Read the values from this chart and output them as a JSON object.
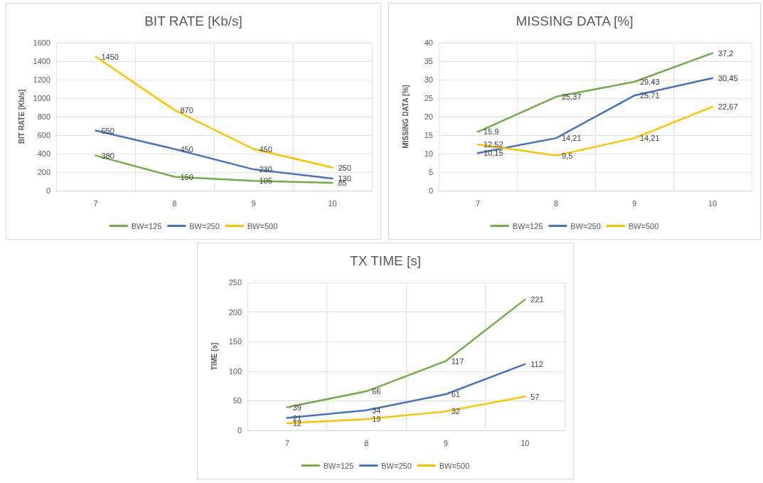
{
  "chart_data": [
    {
      "type": "line",
      "title": "BIT RATE [Kb/s]",
      "ylabel": "BIT RATE [Kb/s]",
      "categories": [
        "7",
        "8",
        "9",
        "10"
      ],
      "ylim": [
        0,
        1600
      ],
      "yticks": [
        0,
        200,
        400,
        600,
        800,
        1000,
        1200,
        1400,
        1600
      ],
      "grid": true,
      "legend": "bottom",
      "marker": "none",
      "series": [
        {
          "name": "BW=125",
          "color": "#70ad47",
          "values": [
            380,
            150,
            105,
            85
          ],
          "value_labels": [
            "380",
            "150",
            "105",
            "85"
          ]
        },
        {
          "name": "BW=250",
          "color": "#4472c4",
          "values": [
            650,
            450,
            230,
            130
          ],
          "value_labels": [
            "650",
            "450",
            "230",
            "130"
          ]
        },
        {
          "name": "BW=500",
          "color": "#ffc000",
          "values": [
            1450,
            870,
            450,
            250
          ],
          "value_labels": [
            "1450",
            "870",
            "450",
            "250"
          ]
        }
      ]
    },
    {
      "type": "line",
      "title": "MISSING DATA [%]",
      "ylabel": "MISSING DATA [%]",
      "categories": [
        "7",
        "8",
        "9",
        "10"
      ],
      "ylim": [
        0,
        40
      ],
      "yticks": [
        0,
        5,
        10,
        15,
        20,
        25,
        30,
        35,
        40
      ],
      "grid": true,
      "legend": "bottom",
      "marker": "none",
      "series": [
        {
          "name": "BW=125",
          "color": "#70ad47",
          "values": [
            15.9,
            25.37,
            29.43,
            37.2
          ],
          "value_labels": [
            "15,9",
            "25,37",
            "29,43",
            "37,2"
          ]
        },
        {
          "name": "BW=250",
          "color": "#4472c4",
          "values": [
            10.15,
            14.21,
            25.71,
            30.45
          ],
          "value_labels": [
            "10,15",
            "14,21",
            "25,71",
            "30,45"
          ]
        },
        {
          "name": "BW=500",
          "color": "#ffc000",
          "values": [
            12.52,
            9.5,
            14.21,
            22.67
          ],
          "value_labels": [
            "12,52",
            "9,5",
            "14,21",
            "22,67"
          ]
        }
      ]
    },
    {
      "type": "line",
      "title": "TX TIME [s]",
      "ylabel": "TIME [s]",
      "categories": [
        "7",
        "8",
        "9",
        "10"
      ],
      "ylim": [
        0,
        250
      ],
      "yticks": [
        0,
        50,
        100,
        150,
        200,
        250
      ],
      "grid": true,
      "legend": "bottom",
      "marker": "none",
      "series": [
        {
          "name": "BW=125",
          "color": "#70ad47",
          "values": [
            39,
            66,
            117,
            221
          ],
          "value_labels": [
            "39",
            "66",
            "117",
            "221"
          ]
        },
        {
          "name": "BW=250",
          "color": "#4472c4",
          "values": [
            21,
            34,
            61,
            112
          ],
          "value_labels": [
            "21",
            "34",
            "61",
            "112"
          ]
        },
        {
          "name": "BW=500",
          "color": "#ffc000",
          "values": [
            12,
            19,
            32,
            57
          ],
          "value_labels": [
            "12",
            "19",
            "32",
            "57"
          ]
        }
      ]
    }
  ]
}
